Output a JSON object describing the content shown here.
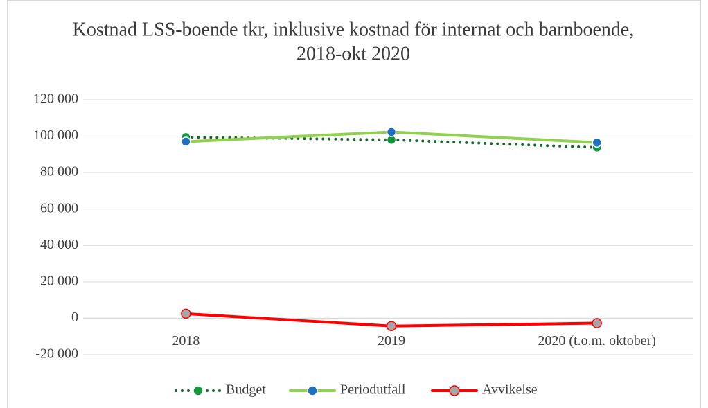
{
  "chart_data": {
    "type": "line",
    "title": [
      "Kostnad LSS-boende tkr, inklusive kostnad för internat och barnboende,",
      "2018-okt 2020"
    ],
    "categories": [
      "2018",
      "2019",
      "2020 (t.o.m. oktober)"
    ],
    "series": [
      {
        "name": "Budget",
        "color": "#17692c",
        "marker_color": "#14973c",
        "dash": "dotted",
        "values": [
          99500,
          98000,
          93800
        ]
      },
      {
        "name": "Periodutfall",
        "color": "#92d050",
        "marker_color": "#1f70c1",
        "dash": "solid",
        "values": [
          97000,
          102300,
          96500
        ]
      },
      {
        "name": "Avvikelse",
        "color": "#ff0000",
        "marker_color": "#a6a6a6",
        "dash": "solid",
        "values": [
          2500,
          -4300,
          -2700
        ]
      }
    ],
    "ylim": [
      -20000,
      120000
    ],
    "yticks": [
      {
        "value": -20000,
        "label": "-20 000"
      },
      0,
      {
        "value": 20000,
        "label": "20 000"
      },
      {
        "value": 40000,
        "label": "40 000"
      },
      {
        "value": 60000,
        "label": "60 000"
      },
      {
        "value": 80000,
        "label": "80 000"
      },
      {
        "value": 100000,
        "label": "100 000"
      },
      {
        "value": 120000,
        "label": "120 000"
      }
    ],
    "grid": true,
    "legend": "bottom"
  }
}
